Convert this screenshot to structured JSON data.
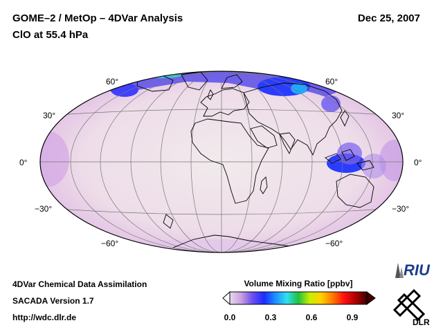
{
  "header": {
    "title_line1": "GOME–2 / MetOp – 4DVar Analysis",
    "title_line2": "ClO at 55.4 hPa",
    "date": "Dec 25, 2007"
  },
  "map": {
    "projection": "Hammer-Aitoff",
    "lat_labels_left": [
      "60°",
      "30°",
      "0°",
      "−30°",
      "−60°"
    ],
    "lat_labels_right": [
      "60°",
      "30°",
      "0°",
      "−30°",
      "−60°"
    ]
  },
  "colorbar": {
    "title": "Volume Mixing Ratio [ppbv]",
    "ticks": [
      "0.0",
      "0.3",
      "0.6",
      "0.9"
    ],
    "colors": [
      "#e8d9ec",
      "#c8a0e0",
      "#6a4df0",
      "#1a2cff",
      "#1e90ff",
      "#30e0f0",
      "#20c040",
      "#c8f000",
      "#ffd000",
      "#ff7a00",
      "#ff1010",
      "#b00000",
      "#400000"
    ]
  },
  "footer": {
    "line1": "4DVar Chemical Data Assimilation",
    "line2": "SACADA Version 1.7",
    "line3": "http://wdc.dlr.de"
  },
  "logos": {
    "riu": "RIU",
    "dlr": "DLR"
  }
}
